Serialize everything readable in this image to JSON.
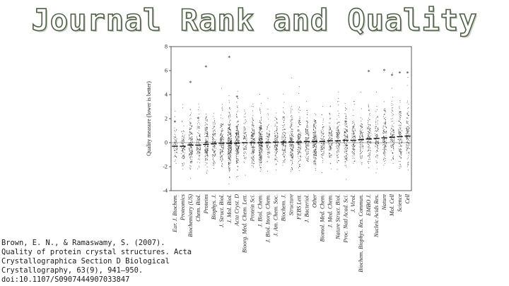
{
  "slide": {
    "title": "Journal Rank and Quality",
    "citation_lines": [
      "Brown, E. N., & Ramaswamy, S. (2007).",
      "Quality of protein crystal structures. Acta",
      "Crystallographica Section D Biological",
      "Crystallography, 63(9), 941–950.",
      "doi:10.1107/S0907444907033847"
    ]
  },
  "chart_data": {
    "type": "scatter",
    "ylabel": "Quality measure (lower is better)",
    "ylim": [
      -4,
      8
    ],
    "yticks": [
      -4,
      -2,
      0,
      2,
      4,
      6,
      8
    ],
    "grid": false,
    "categories": [
      "Eur. J. Biochem.",
      "Proteomics",
      "Biochemistry (US)",
      "Chem. Biol.",
      "Proteins",
      "Biophys. J.",
      "J. Struct. Biol.",
      "J. Mol. Biol.",
      "Acta Cryst. D",
      "Bioorg. Med. Chem. Lett.",
      "Protein Sci.",
      "J. Biol. Chem.",
      "J. Biol. Inorg. Chem.",
      "J. Am. Chem. Soc.",
      "Biochem. J.",
      "Structure",
      "FEBS Lett.",
      "J. Bacteriol.",
      "Other",
      "Biomol. Med. Chem.",
      "J. Med. Chem.",
      "Nature Struct. Biol.",
      "Proc. Natl Acad. Sci.",
      "J. Virol.",
      "Biochem. Biophys. Res. Commun.",
      "EMBO J.",
      "Nucleic Acids Res.",
      "Nature",
      "Mol. Cell",
      "Science",
      "Cell"
    ],
    "median_values": [
      -0.3,
      -0.3,
      -0.2,
      -0.2,
      -0.15,
      -0.1,
      -0.05,
      -0.05,
      -0.05,
      0,
      0,
      0,
      0,
      0.05,
      0.05,
      0.05,
      0.05,
      0.1,
      0.1,
      0.1,
      0.15,
      0.15,
      0.2,
      0.2,
      0.25,
      0.3,
      0.35,
      0.4,
      0.45,
      0.5,
      0.55
    ],
    "outlier_markers": [
      {
        "category": "Eur. J. Biochem.",
        "value": 1.7
      },
      {
        "category": "Biochemistry (US)",
        "value": 5.0
      },
      {
        "category": "Chem. Biol.",
        "value": 2.0
      },
      {
        "category": "Proteins",
        "value": 6.3
      },
      {
        "category": "J. Mol. Biol.",
        "value": 7.1
      },
      {
        "category": "Acta Cryst. D",
        "value": 3.8
      },
      {
        "category": "EMBO J.",
        "value": 5.9
      },
      {
        "category": "Nature",
        "value": 6.0
      },
      {
        "category": "Mol. Cell",
        "value": 5.6
      },
      {
        "category": "Science",
        "value": 5.8
      },
      {
        "category": "Cell",
        "value": 5.8
      }
    ]
  }
}
